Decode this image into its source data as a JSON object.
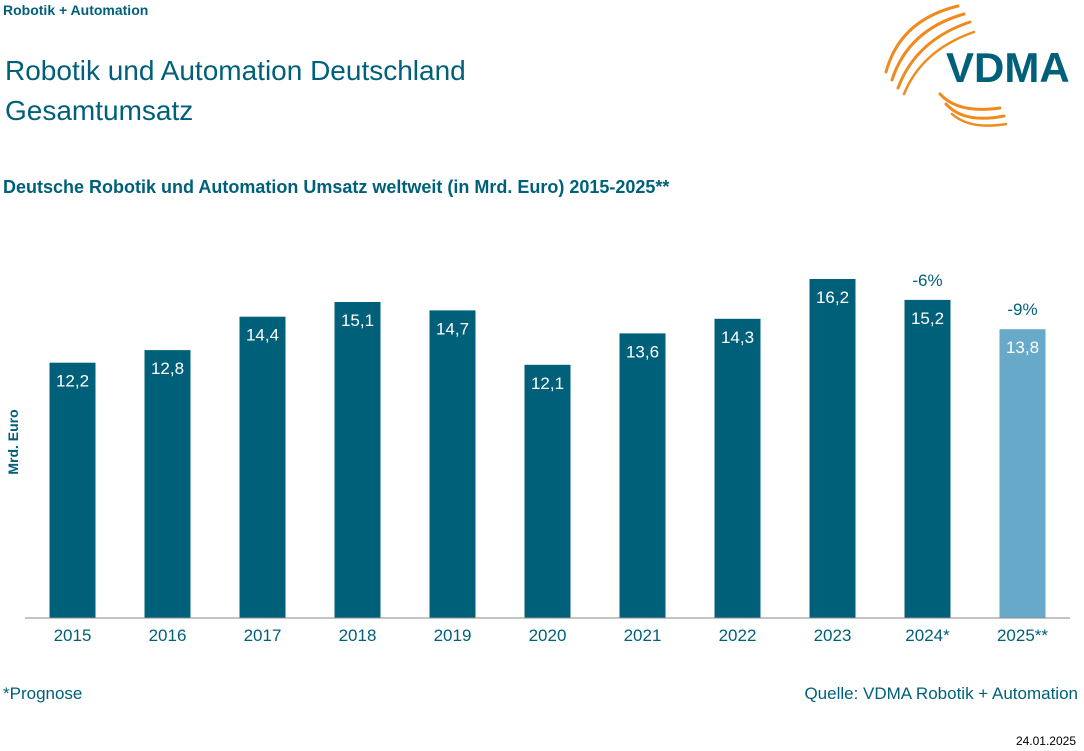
{
  "header": {
    "tag": "Robotik + Automation",
    "title_line1": "Robotik und Automation Deutschland",
    "title_line2": "Gesamtumsatz"
  },
  "logo": {
    "text": "VDMA",
    "text_color": "#00607a",
    "arc_color": "#f08a1c"
  },
  "chart_data": {
    "type": "bar",
    "title": "Deutsche Robotik und Automation Umsatz weltweit (in Mrd. Euro) 2015-2025**",
    "ylabel": "Mrd. Euro",
    "xlabel": "",
    "categories": [
      "2015",
      "2016",
      "2017",
      "2018",
      "2019",
      "2020",
      "2021",
      "2022",
      "2023",
      "2024*",
      "2025**"
    ],
    "values": [
      12.2,
      12.8,
      14.4,
      15.1,
      14.7,
      12.1,
      13.6,
      14.3,
      16.2,
      15.2,
      13.8
    ],
    "value_labels": [
      "12,2",
      "12,8",
      "14,4",
      "15,1",
      "14,7",
      "12,1",
      "13,6",
      "14,3",
      "16,2",
      "15,2",
      "13,8"
    ],
    "annotations": [
      {
        "category": "2024*",
        "text": "-6%"
      },
      {
        "category": "2025**",
        "text": "-9%"
      }
    ],
    "ylim": [
      0,
      16.2
    ],
    "grid": false,
    "legend": "none",
    "colors": {
      "actual": "#00607a",
      "forecast": "#67a9c9",
      "label": "#ffffff"
    },
    "forecast_index_from": 10
  },
  "footer": {
    "footnote": "*Prognose",
    "source": "Quelle: VDMA Robotik + Automation",
    "date": "24.01.2025"
  }
}
